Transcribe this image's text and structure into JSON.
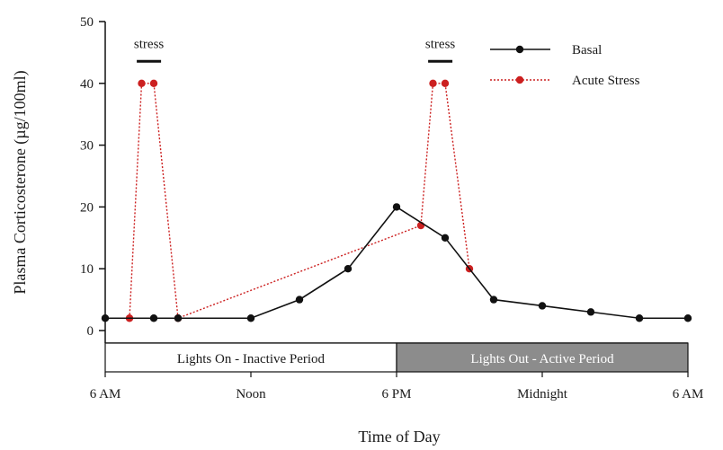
{
  "chart_data": {
    "type": "line",
    "title": "",
    "xlabel": "Time of Day",
    "ylabel": "Plasma Corticosterone (µg/100ml)",
    "ylim": [
      0,
      50
    ],
    "xlim": [
      6,
      30
    ],
    "yticks": [
      0,
      10,
      20,
      30,
      40,
      50
    ],
    "xticks": [
      {
        "x": 6,
        "label": "6 AM"
      },
      {
        "x": 12,
        "label": "Noon"
      },
      {
        "x": 18,
        "label": "6 PM"
      },
      {
        "x": 24,
        "label": "Midnight"
      },
      {
        "x": 30,
        "label": "6 AM"
      }
    ],
    "grid": false,
    "legend_position": "top-right",
    "colors": {
      "basal": "#111111",
      "acute": "#cc2020",
      "active_band": "#8c8c8c"
    },
    "series": [
      {
        "name": "Basal",
        "style": "solid",
        "x": [
          6,
          8,
          9,
          12,
          14,
          16,
          18,
          20,
          22,
          24,
          26,
          28,
          30
        ],
        "y": [
          2,
          2,
          2,
          2,
          5,
          10,
          20,
          15,
          5,
          4,
          3,
          2,
          2
        ]
      },
      {
        "name": "Acute Stress",
        "style": "dotted",
        "x": [
          7,
          7.5,
          8,
          9,
          19,
          19.5,
          20,
          21
        ],
        "y": [
          2,
          40,
          40,
          2,
          17,
          40,
          40,
          10
        ]
      }
    ],
    "annotations": [
      {
        "text": "stress",
        "x_start": 7.3,
        "x_end": 8.3,
        "y": 44
      },
      {
        "text": "stress",
        "x_start": 19.3,
        "x_end": 20.3,
        "y": 44
      }
    ],
    "periods": [
      {
        "label": "Lights On - Inactive Period",
        "x_start": 6,
        "x_end": 18,
        "shade": "light"
      },
      {
        "label": "Lights Out - Active Period",
        "x_start": 18,
        "x_end": 30,
        "shade": "dark"
      }
    ]
  }
}
